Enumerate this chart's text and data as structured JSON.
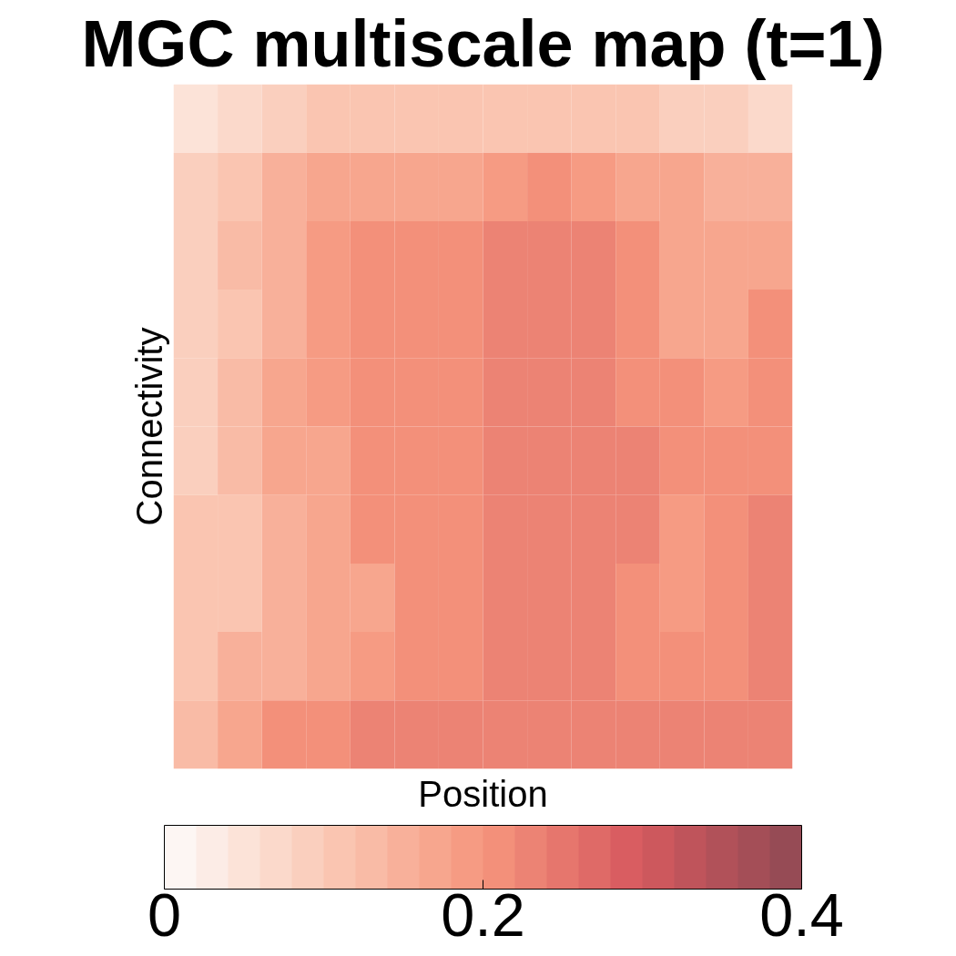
{
  "chart_data": {
    "type": "heatmap",
    "title": "MGC multiscale map (t=1)",
    "xlabel": "Position",
    "ylabel": "Connectivity",
    "categories": [
      null,
      null,
      null,
      null,
      null,
      null,
      null,
      null,
      null,
      null,
      null,
      null,
      null,
      null
    ],
    "y_categories": [
      null,
      null,
      null,
      null,
      null,
      null,
      null,
      null,
      null,
      null
    ],
    "cells": [
      [
        0.04,
        0.07,
        0.09,
        0.1,
        0.11,
        0.11,
        0.11,
        0.11,
        0.11,
        0.11,
        0.1,
        0.09,
        0.08,
        0.07
      ],
      [
        0.08,
        0.12,
        0.14,
        0.16,
        0.18,
        0.18,
        0.18,
        0.19,
        0.2,
        0.19,
        0.18,
        0.17,
        0.15,
        0.14
      ],
      [
        0.09,
        0.13,
        0.15,
        0.19,
        0.2,
        0.2,
        0.2,
        0.22,
        0.23,
        0.22,
        0.2,
        0.18,
        0.16,
        0.18
      ],
      [
        0.09,
        0.12,
        0.15,
        0.19,
        0.2,
        0.2,
        0.2,
        0.22,
        0.23,
        0.22,
        0.2,
        0.18,
        0.17,
        0.2
      ],
      [
        0.09,
        0.13,
        0.16,
        0.19,
        0.2,
        0.2,
        0.21,
        0.22,
        0.23,
        0.22,
        0.21,
        0.2,
        0.19,
        0.21
      ],
      [
        0.09,
        0.13,
        0.16,
        0.18,
        0.2,
        0.21,
        0.21,
        0.22,
        0.23,
        0.23,
        0.22,
        0.21,
        0.2,
        0.21
      ],
      [
        0.1,
        0.12,
        0.15,
        0.17,
        0.2,
        0.21,
        0.21,
        0.22,
        0.23,
        0.23,
        0.22,
        0.19,
        0.2,
        0.22
      ],
      [
        0.1,
        0.12,
        0.14,
        0.16,
        0.18,
        0.2,
        0.21,
        0.22,
        0.23,
        0.22,
        0.21,
        0.19,
        0.2,
        0.22
      ],
      [
        0.11,
        0.14,
        0.15,
        0.17,
        0.19,
        0.2,
        0.21,
        0.22,
        0.22,
        0.22,
        0.21,
        0.21,
        0.21,
        0.22
      ],
      [
        0.13,
        0.18,
        0.2,
        0.21,
        0.22,
        0.22,
        0.23,
        0.24,
        0.24,
        0.24,
        0.23,
        0.23,
        0.23,
        0.24
      ]
    ],
    "clim": [
      0,
      0.4
    ],
    "cticks": [
      {
        "value": 0,
        "label": "0"
      },
      0.2,
      0.4
    ]
  }
}
